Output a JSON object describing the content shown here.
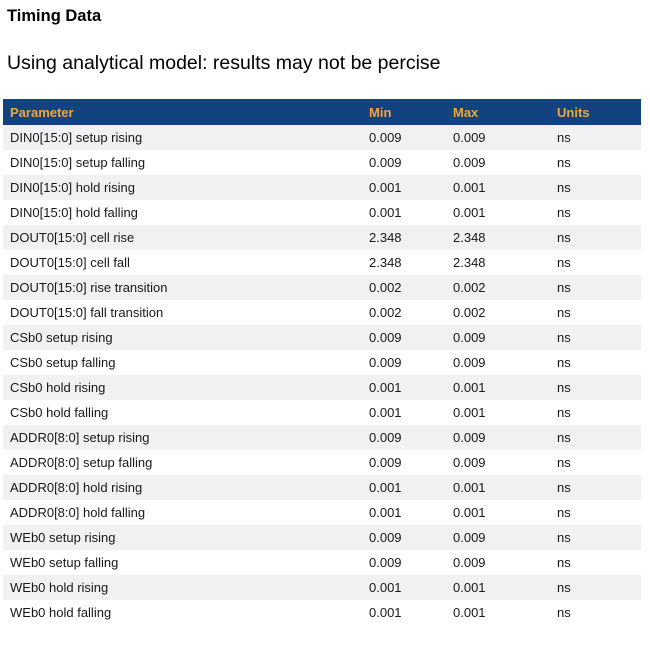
{
  "page": {
    "title": "Timing Data",
    "subtitle": "Using analytical model: results may not be percise"
  },
  "colors": {
    "header_background": "#134280",
    "header_text": "#f2a43a",
    "row_stripe": "#f0f1f2",
    "body_text": "#17181a"
  },
  "table": {
    "columns": [
      "Parameter",
      "Min",
      "Max",
      "Units"
    ],
    "rows": [
      {
        "parameter": "DIN0[15:0] setup rising",
        "min": "0.009",
        "max": "0.009",
        "units": "ns"
      },
      {
        "parameter": "DIN0[15:0] setup falling",
        "min": "0.009",
        "max": "0.009",
        "units": "ns"
      },
      {
        "parameter": "DIN0[15:0] hold rising",
        "min": "0.001",
        "max": "0.001",
        "units": "ns"
      },
      {
        "parameter": "DIN0[15:0] hold falling",
        "min": "0.001",
        "max": "0.001",
        "units": "ns"
      },
      {
        "parameter": "DOUT0[15:0] cell rise",
        "min": "2.348",
        "max": "2.348",
        "units": "ns"
      },
      {
        "parameter": "DOUT0[15:0] cell fall",
        "min": "2.348",
        "max": "2.348",
        "units": "ns"
      },
      {
        "parameter": "DOUT0[15:0] rise transition",
        "min": "0.002",
        "max": "0.002",
        "units": "ns"
      },
      {
        "parameter": "DOUT0[15:0] fall transition",
        "min": "0.002",
        "max": "0.002",
        "units": "ns"
      },
      {
        "parameter": "CSb0 setup rising",
        "min": "0.009",
        "max": "0.009",
        "units": "ns"
      },
      {
        "parameter": "CSb0 setup falling",
        "min": "0.009",
        "max": "0.009",
        "units": "ns"
      },
      {
        "parameter": "CSb0 hold rising",
        "min": "0.001",
        "max": "0.001",
        "units": "ns"
      },
      {
        "parameter": "CSb0 hold falling",
        "min": "0.001",
        "max": "0.001",
        "units": "ns"
      },
      {
        "parameter": "ADDR0[8:0] setup rising",
        "min": "0.009",
        "max": "0.009",
        "units": "ns"
      },
      {
        "parameter": "ADDR0[8:0] setup falling",
        "min": "0.009",
        "max": "0.009",
        "units": "ns"
      },
      {
        "parameter": "ADDR0[8:0] hold rising",
        "min": "0.001",
        "max": "0.001",
        "units": "ns"
      },
      {
        "parameter": "ADDR0[8:0] hold falling",
        "min": "0.001",
        "max": "0.001",
        "units": "ns"
      },
      {
        "parameter": "WEb0 setup rising",
        "min": "0.009",
        "max": "0.009",
        "units": "ns"
      },
      {
        "parameter": "WEb0 setup falling",
        "min": "0.009",
        "max": "0.009",
        "units": "ns"
      },
      {
        "parameter": "WEb0 hold rising",
        "min": "0.001",
        "max": "0.001",
        "units": "ns"
      },
      {
        "parameter": "WEb0 hold falling",
        "min": "0.001",
        "max": "0.001",
        "units": "ns"
      }
    ]
  }
}
